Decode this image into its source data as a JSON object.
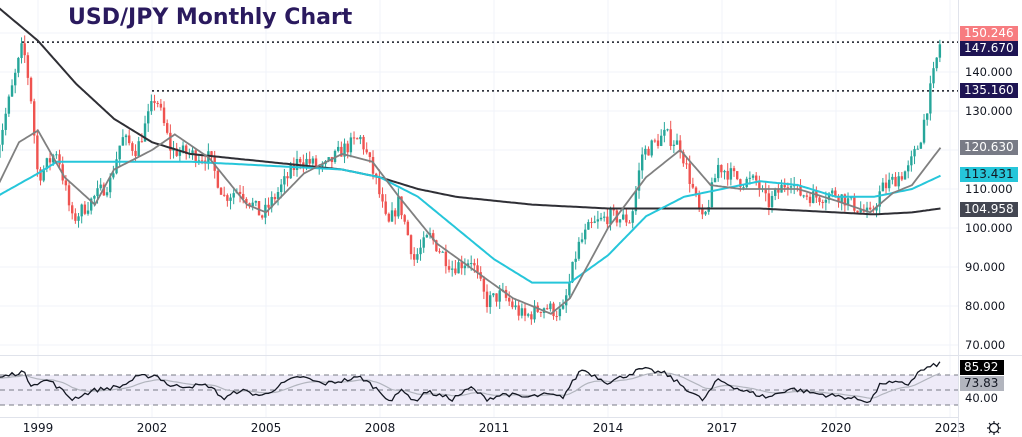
{
  "title": "USD/JPY Monthly Chart",
  "colors": {
    "up": "#26a69a",
    "down": "#ef5350",
    "ma_long": "#2f2f35",
    "ma_mid": "#26c6da",
    "ma_short": "#808080",
    "rsi": "#131722",
    "rsi_signal": "#b2b5be",
    "title": "#2a1a5e"
  },
  "price_axis": {
    "labels": [
      "140.000",
      "130.000",
      "110.000",
      "100.000",
      "90.000",
      "80.000",
      "70.000"
    ]
  },
  "price_tags": {
    "last": "150.246",
    "resistance_1": "147.670",
    "resistance_2": "135.160",
    "ma_short": "120.630",
    "ma_mid": "113.431",
    "ma_long": "104.958"
  },
  "rsi_axis": {
    "value": "85.92",
    "signal": "73.83",
    "label": "40.00"
  },
  "time_axis": {
    "labels": [
      "1999",
      "2002",
      "2005",
      "2008",
      "2011",
      "2014",
      "2017",
      "2020",
      "2023"
    ]
  },
  "chart_data": {
    "type": "candlestick",
    "title": "USD/JPY Monthly Chart",
    "interval": "monthly",
    "x_range": [
      1997.9,
      2022.75
    ],
    "ylim": [
      65,
      158
    ],
    "horizontal_levels": [
      147.67,
      135.16
    ],
    "close_anchors": [
      [
        1997.92,
        120
      ],
      [
        1998.6,
        147
      ],
      [
        1998.8,
        135
      ],
      [
        1999.0,
        113
      ],
      [
        1999.5,
        120
      ],
      [
        1999.9,
        102
      ],
      [
        2000.5,
        108
      ],
      [
        2000.9,
        112
      ],
      [
        2001.2,
        123
      ],
      [
        2001.6,
        120
      ],
      [
        2002.1,
        134
      ],
      [
        2002.5,
        120
      ],
      [
        2003.0,
        119
      ],
      [
        2003.5,
        118
      ],
      [
        2003.9,
        108
      ],
      [
        2004.3,
        110
      ],
      [
        2004.9,
        103
      ],
      [
        2005.5,
        112
      ],
      [
        2005.9,
        118
      ],
      [
        2006.5,
        115
      ],
      [
        2007.0,
        120
      ],
      [
        2007.5,
        123
      ],
      [
        2007.9,
        112
      ],
      [
        2008.2,
        100
      ],
      [
        2008.5,
        107
      ],
      [
        2008.9,
        92
      ],
      [
        2009.3,
        98
      ],
      [
        2009.9,
        90
      ],
      [
        2010.4,
        92
      ],
      [
        2010.8,
        81
      ],
      [
        2011.2,
        83
      ],
      [
        2011.8,
        77
      ],
      [
        2012.3,
        80
      ],
      [
        2012.8,
        78
      ],
      [
        2013.2,
        95
      ],
      [
        2013.5,
        100
      ],
      [
        2014.0,
        103
      ],
      [
        2014.6,
        102
      ],
      [
        2014.9,
        119
      ],
      [
        2015.5,
        124
      ],
      [
        2015.9,
        121
      ],
      [
        2016.5,
        101
      ],
      [
        2016.9,
        116
      ],
      [
        2017.5,
        112
      ],
      [
        2017.9,
        112
      ],
      [
        2018.2,
        106
      ],
      [
        2018.8,
        113
      ],
      [
        2019.0,
        109
      ],
      [
        2019.5,
        108
      ],
      [
        2020.0,
        109
      ],
      [
        2020.3,
        107
      ],
      [
        2020.9,
        103
      ],
      [
        2021.2,
        110
      ],
      [
        2021.9,
        115
      ],
      [
        2022.2,
        122
      ],
      [
        2022.5,
        136
      ],
      [
        2022.75,
        148
      ]
    ],
    "ma_long": [
      [
        1997.9,
        157
      ],
      [
        1999,
        148
      ],
      [
        2000,
        137
      ],
      [
        2001,
        128
      ],
      [
        2002,
        122
      ],
      [
        2003,
        119
      ],
      [
        2004,
        118
      ],
      [
        2005,
        117
      ],
      [
        2006,
        116
      ],
      [
        2007,
        115
      ],
      [
        2008,
        113
      ],
      [
        2009,
        110
      ],
      [
        2010,
        108
      ],
      [
        2011,
        107
      ],
      [
        2012,
        106
      ],
      [
        2013,
        105.5
      ],
      [
        2014,
        105
      ],
      [
        2017,
        105
      ],
      [
        2018,
        105
      ],
      [
        2019,
        104.5
      ],
      [
        2020,
        104
      ],
      [
        2021,
        103.5
      ],
      [
        2022,
        104
      ],
      [
        2022.75,
        105
      ]
    ],
    "ma_mid": [
      [
        1997.9,
        108
      ],
      [
        1999,
        114
      ],
      [
        1999.5,
        117
      ],
      [
        2003,
        117
      ],
      [
        2005,
        116
      ],
      [
        2007,
        115
      ],
      [
        2008,
        113
      ],
      [
        2009,
        108
      ],
      [
        2010,
        100
      ],
      [
        2011,
        92
      ],
      [
        2012,
        86
      ],
      [
        2013,
        86
      ],
      [
        2014,
        93
      ],
      [
        2015,
        103
      ],
      [
        2016,
        108
      ],
      [
        2017,
        110
      ],
      [
        2018,
        112
      ],
      [
        2019,
        111
      ],
      [
        2020,
        108
      ],
      [
        2021,
        108
      ],
      [
        2022,
        110
      ],
      [
        2022.75,
        113.4
      ]
    ],
    "ma_short": [
      [
        1997.9,
        110
      ],
      [
        1998.5,
        122
      ],
      [
        1999,
        125
      ],
      [
        1999.7,
        113
      ],
      [
        2000.5,
        106
      ],
      [
        2001,
        115
      ],
      [
        2002,
        120
      ],
      [
        2002.6,
        124
      ],
      [
        2003.5,
        118
      ],
      [
        2004.5,
        106
      ],
      [
        2005,
        104
      ],
      [
        2006,
        114
      ],
      [
        2007,
        119
      ],
      [
        2007.8,
        117
      ],
      [
        2008.5,
        108
      ],
      [
        2009.5,
        96
      ],
      [
        2010.5,
        89
      ],
      [
        2011.5,
        82
      ],
      [
        2012.5,
        78
      ],
      [
        2013,
        82
      ],
      [
        2014,
        100
      ],
      [
        2015,
        113
      ],
      [
        2015.9,
        120
      ],
      [
        2016.7,
        111
      ],
      [
        2017.5,
        110
      ],
      [
        2019,
        110
      ],
      [
        2020,
        107
      ],
      [
        2020.9,
        104
      ],
      [
        2021.5,
        109
      ],
      [
        2022,
        111
      ],
      [
        2022.75,
        120.6
      ]
    ],
    "rsi": {
      "levels": [
        70,
        50,
        30
      ],
      "anchors": [
        [
          1997.9,
          65
        ],
        [
          1998.6,
          75
        ],
        [
          1998.8,
          58
        ],
        [
          1999.3,
          63
        ],
        [
          1999.9,
          38
        ],
        [
          2000.5,
          50
        ],
        [
          2001.2,
          55
        ],
        [
          2001.6,
          67
        ],
        [
          2002.1,
          70
        ],
        [
          2002.5,
          55
        ],
        [
          2003.5,
          56
        ],
        [
          2003.9,
          38
        ],
        [
          2004.3,
          50
        ],
        [
          2004.9,
          42
        ],
        [
          2005.5,
          60
        ],
        [
          2005.9,
          68
        ],
        [
          2006.5,
          58
        ],
        [
          2007.5,
          67
        ],
        [
          2007.9,
          52
        ],
        [
          2008.3,
          35
        ],
        [
          2008.6,
          52
        ],
        [
          2008.9,
          34
        ],
        [
          2009.2,
          48
        ],
        [
          2009.9,
          38
        ],
        [
          2010.4,
          53
        ],
        [
          2010.8,
          38
        ],
        [
          2011.3,
          45
        ],
        [
          2011.8,
          40
        ],
        [
          2012.4,
          44
        ],
        [
          2012.8,
          40
        ],
        [
          2013.3,
          78
        ],
        [
          2014,
          60
        ],
        [
          2014.9,
          78
        ],
        [
          2015.5,
          72
        ],
        [
          2016.5,
          36
        ],
        [
          2016.9,
          64
        ],
        [
          2017.5,
          50
        ],
        [
          2018.2,
          40
        ],
        [
          2018.8,
          52
        ],
        [
          2019.5,
          45
        ],
        [
          2020.3,
          40
        ],
        [
          2020.9,
          35
        ],
        [
          2021.2,
          60
        ],
        [
          2021.9,
          58
        ],
        [
          2022.2,
          75
        ],
        [
          2022.75,
          86
        ]
      ]
    }
  }
}
